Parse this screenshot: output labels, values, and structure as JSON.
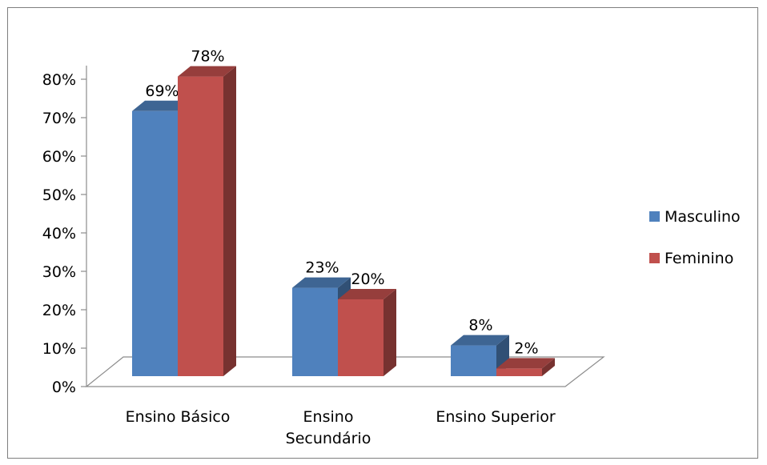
{
  "chart_data": {
    "type": "bar",
    "categories": [
      "Ensino Básico",
      "Ensino Secundário",
      "Ensino Superior"
    ],
    "category_label_lines": [
      [
        "Ensino Básico"
      ],
      [
        "Ensino",
        "Secundário"
      ],
      [
        "Ensino Superior"
      ]
    ],
    "series": [
      {
        "name": "Masculino",
        "values": [
          0.69,
          0.23,
          0.08
        ],
        "labels": [
          "69%",
          "23%",
          "8%"
        ],
        "color": "#4f81bd"
      },
      {
        "name": "Feminino",
        "values": [
          0.78,
          0.2,
          0.02
        ],
        "labels": [
          "78%",
          "20%",
          "2%"
        ],
        "color": "#c0504d"
      }
    ],
    "y_ticks": [
      "0%",
      "10%",
      "20%",
      "30%",
      "40%",
      "50%",
      "60%",
      "70%",
      "80%"
    ],
    "ylim": [
      0,
      0.8
    ],
    "grid": false,
    "legend_position": "right",
    "style": "3d-clustered-column"
  }
}
